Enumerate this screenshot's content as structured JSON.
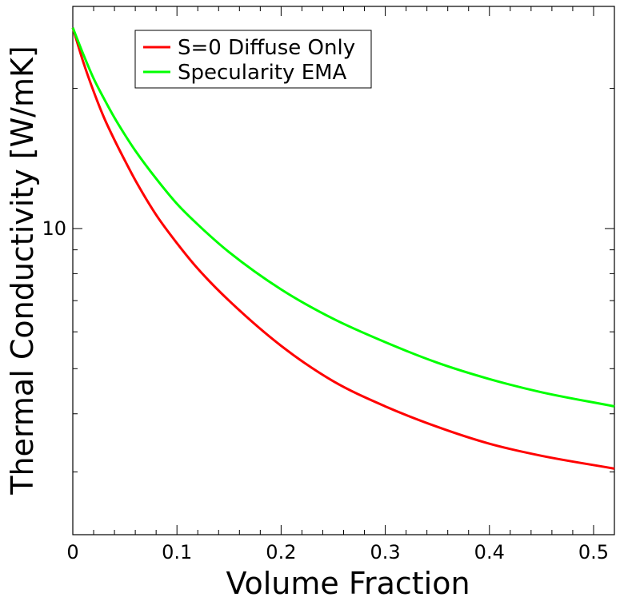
{
  "chart_data": {
    "type": "line",
    "title": "",
    "xlabel": "Volume Fraction",
    "ylabel": "Thermal Conductivity [W/mK]",
    "xlim": [
      0,
      0.52
    ],
    "ylim": [
      2.2,
      30
    ],
    "yscale": "log",
    "grid": false,
    "legend_position": "top-left",
    "x_ticks": [
      0,
      0.1,
      0.2,
      0.3,
      0.4,
      0.5
    ],
    "x_tick_labels": [
      "0",
      "0.1",
      "0.2",
      "0.3",
      "0.4",
      "0.5"
    ],
    "y_ticks": [
      10
    ],
    "y_tick_labels": [
      "10"
    ],
    "series": [
      {
        "name": "S=0 Diffuse Only",
        "color": "#ff0000",
        "x": [
          0.0,
          0.01,
          0.02,
          0.03,
          0.04,
          0.05,
          0.06,
          0.08,
          0.1,
          0.12,
          0.15,
          0.2,
          0.25,
          0.3,
          0.35,
          0.4,
          0.45,
          0.52
        ],
        "y": [
          27.0,
          22.8,
          19.7,
          17.3,
          15.5,
          14.0,
          12.7,
          10.7,
          9.3,
          8.2,
          7.0,
          5.6,
          4.7,
          4.15,
          3.75,
          3.45,
          3.25,
          3.05
        ]
      },
      {
        "name": "Specularity EMA",
        "color": "#00ff00",
        "x": [
          0.0,
          0.01,
          0.02,
          0.03,
          0.04,
          0.05,
          0.06,
          0.08,
          0.1,
          0.12,
          0.15,
          0.2,
          0.25,
          0.3,
          0.35,
          0.4,
          0.45,
          0.52
        ],
        "y": [
          27.0,
          23.7,
          21.0,
          19.0,
          17.3,
          15.9,
          14.7,
          12.8,
          11.3,
          10.2,
          8.9,
          7.4,
          6.4,
          5.7,
          5.15,
          4.75,
          4.45,
          4.15
        ]
      }
    ]
  }
}
